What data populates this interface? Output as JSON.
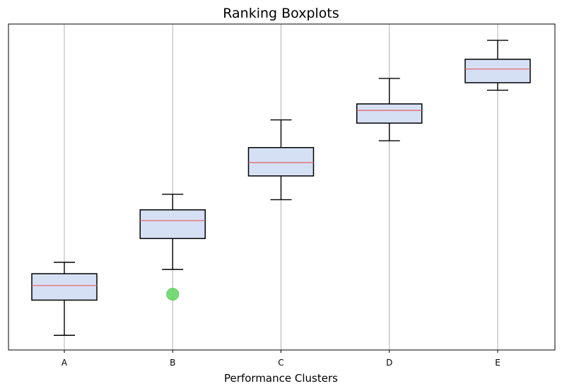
{
  "chart_data": {
    "type": "boxplot",
    "title": "Ranking Boxplots",
    "xlabel": "Performance Clusters",
    "ylabel": "",
    "categories": [
      "A",
      "B",
      "C",
      "D",
      "E"
    ],
    "ylim": [
      0,
      100
    ],
    "grid": "vertical",
    "y_ticks_visible": false,
    "boxes": [
      {
        "name": "A",
        "whisker_low": 4.5,
        "q1": 15.3,
        "median": 19.8,
        "q3": 23.4,
        "whisker_high": 26.9,
        "outliers": []
      },
      {
        "name": "B",
        "whisker_low": 24.7,
        "q1": 34.2,
        "median": 39.7,
        "q3": 43.0,
        "whisker_high": 47.8,
        "outliers": [
          17.1
        ]
      },
      {
        "name": "C",
        "whisker_low": 46.1,
        "q1": 53.4,
        "median": 57.5,
        "q3": 62.1,
        "whisker_high": 70.6,
        "outliers": []
      },
      {
        "name": "D",
        "whisker_low": 64.2,
        "q1": 69.6,
        "median": 73.5,
        "q3": 75.5,
        "whisker_high": 83.3,
        "outliers": []
      },
      {
        "name": "E",
        "whisker_low": 79.7,
        "q1": 82.0,
        "median": 86.2,
        "q3": 89.2,
        "whisker_high": 95.0,
        "outliers": []
      }
    ],
    "colors": {
      "box_fill": "#d6e0f5",
      "box_edge": "#000000",
      "median": "#e06a6a",
      "outlier": "#5fd35f",
      "grid": "#b0b0b0"
    }
  }
}
